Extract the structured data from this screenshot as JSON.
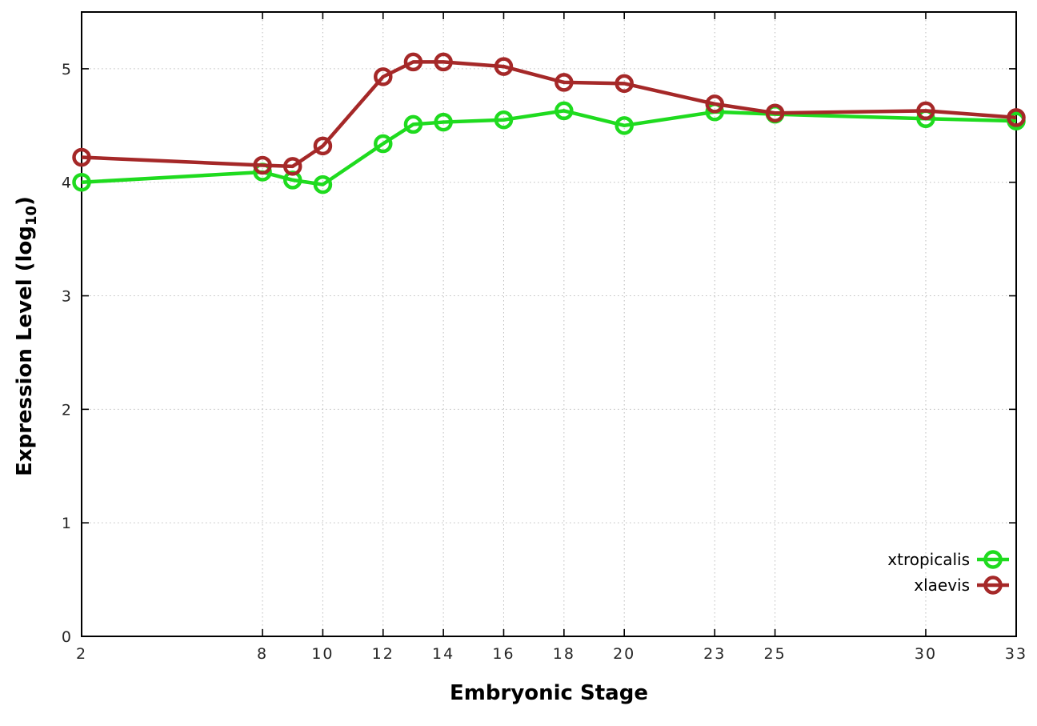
{
  "chart_data": {
    "type": "line",
    "title": "",
    "xlabel": "Embryonic Stage",
    "ylabel": "Expression Level (log10)",
    "ylabel_parts": {
      "pre": "Expression Level (log",
      "sub": "10",
      "post": ")"
    },
    "x": [
      2,
      8,
      9,
      10,
      12,
      13,
      14,
      16,
      18,
      20,
      23,
      25,
      30,
      33
    ],
    "series": [
      {
        "name": "xtropicalis",
        "color": "#1fdb1f",
        "values": [
          4.0,
          4.09,
          4.02,
          3.98,
          4.34,
          4.51,
          4.53,
          4.55,
          4.63,
          4.5,
          4.62,
          4.6,
          4.56,
          4.54
        ]
      },
      {
        "name": "xlaevis",
        "color": "#a52828",
        "values": [
          4.22,
          4.15,
          4.14,
          4.32,
          4.93,
          5.06,
          5.06,
          5.02,
          4.88,
          4.87,
          4.69,
          4.61,
          4.63,
          4.57
        ]
      }
    ],
    "xticks": [
      2,
      8,
      10,
      12,
      14,
      16,
      18,
      20,
      23,
      25,
      30,
      33
    ],
    "yticks": [
      0,
      1,
      2,
      3,
      4,
      5
    ],
    "xlim": [
      2,
      33
    ],
    "ylim": [
      0,
      5.5
    ],
    "grid": "dotted",
    "grid_color": "#bcbcbc",
    "axis_color": "#000000",
    "tick_label_color": "#262626",
    "legend_position": "inside-right",
    "legend_labels": [
      "xtropicalis",
      "xlaevis"
    ]
  }
}
